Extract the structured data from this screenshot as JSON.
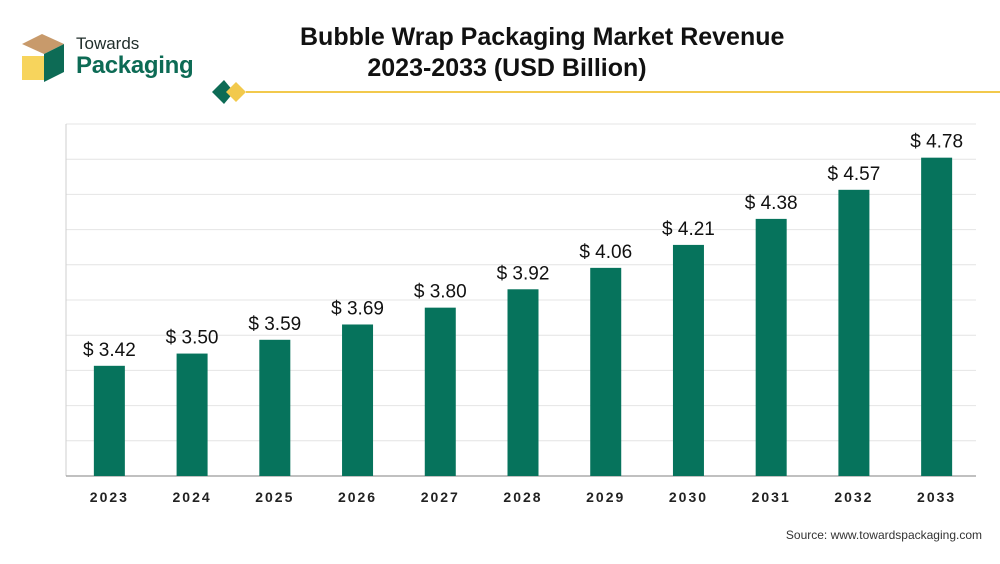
{
  "logo": {
    "line1": "Towards",
    "line2": "Packaging"
  },
  "title": {
    "line1": "Bubble Wrap Packaging Market Revenue",
    "line2": "2023-2033 (USD Billion)"
  },
  "source": "Source: www.towardspackaging.com",
  "colors": {
    "bar": "#06735c",
    "accent": "#f2c94c",
    "grid": "#e4e4e4",
    "logo_tan": "#c89a6b",
    "logo_yellow": "#f7d45c"
  },
  "chart_data": {
    "type": "bar",
    "title": "Bubble Wrap Packaging Market Revenue 2023-2033 (USD Billion)",
    "categories": [
      "2023",
      "2024",
      "2025",
      "2026",
      "2027",
      "2028",
      "2029",
      "2030",
      "2031",
      "2032",
      "2033"
    ],
    "values": [
      3.42,
      3.5,
      3.59,
      3.69,
      3.8,
      3.92,
      4.06,
      4.21,
      4.38,
      4.57,
      4.78
    ],
    "labels": [
      "$ 3.42",
      "$ 3.50",
      "$ 3.59",
      "$ 3.69",
      "$ 3.80",
      "$ 3.92",
      "$ 4.06",
      "$ 4.21",
      "$ 4.38",
      "$ 4.57",
      "$ 4.78"
    ],
    "xlabel": "",
    "ylabel": "",
    "ylim": [
      2.7,
      5.0
    ],
    "grid": true,
    "legend": "none"
  }
}
